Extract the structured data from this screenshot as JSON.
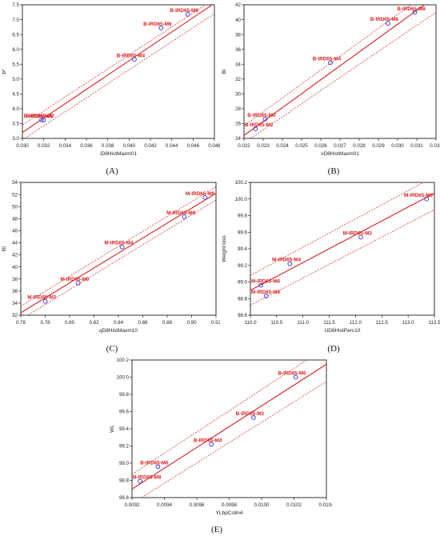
{
  "colors": {
    "accent": "#d81e1e",
    "point": "#2b2bd6",
    "frame": "#000000"
  },
  "chart_data": [
    {
      "type": "scatter",
      "panel_label": "(A)",
      "xlabel": "iD8HistMaxm01",
      "ylabel": "b*",
      "xlim": [
        0.03,
        0.048
      ],
      "ylim": [
        3.0,
        7.5
      ],
      "xticks": [
        "0.030",
        "0.032",
        "0.034",
        "0.036",
        "0.038",
        "0.040",
        "0.042",
        "0.044",
        "0.046",
        "0.048"
      ],
      "yticks": [
        "3.0",
        "3.5",
        "4.0",
        "4.5",
        "5.0",
        "5.5",
        "6.0",
        "6.5",
        "7.0",
        "7.5"
      ],
      "points": [
        {
          "label": "B-IRD65-M0",
          "x": 0.0318,
          "y": 3.62
        },
        {
          "label": "B-IRD65-M2",
          "x": 0.032,
          "y": 3.62
        },
        {
          "label": "B-IRD65-M4",
          "x": 0.0405,
          "y": 5.66
        },
        {
          "label": "B-IRD65-M6",
          "x": 0.043,
          "y": 6.72
        },
        {
          "label": "B-IRD65-M8",
          "x": 0.0455,
          "y": 7.18
        }
      ],
      "fit": [
        [
          0.03,
          3.2
        ],
        [
          0.048,
          7.55
        ]
      ],
      "ci_upper": [
        [
          0.03,
          3.45
        ],
        [
          0.048,
          7.7
        ]
      ],
      "ci_lower": [
        [
          0.03,
          2.95
        ],
        [
          0.048,
          7.2
        ]
      ]
    },
    {
      "type": "scatter",
      "panel_label": "(B)",
      "xlabel": "vD8HistMaxm01",
      "ylabel": "BI",
      "xlim": [
        0.022,
        0.032
      ],
      "ylim": [
        24,
        42
      ],
      "xticks": [
        "0.022",
        "0.023",
        "0.024",
        "0.025",
        "0.026",
        "0.027",
        "0.028",
        "0.029",
        "0.030",
        "0.031",
        "0.032"
      ],
      "yticks": [
        "24",
        "26",
        "28",
        "30",
        "32",
        "34",
        "36",
        "38",
        "40",
        "42"
      ],
      "points": [
        {
          "label": "B-IRD65-M0",
          "x": 0.0231,
          "y": 26.6
        },
        {
          "label": "B-IRD65-M2",
          "x": 0.0226,
          "y": 25.3
        },
        {
          "label": "B-IRD65-M4",
          "x": 0.0265,
          "y": 34.2
        },
        {
          "label": "B-IRD65-M6",
          "x": 0.0295,
          "y": 39.5
        },
        {
          "label": "B-IRD65-M8",
          "x": 0.0309,
          "y": 41.0
        }
      ],
      "fit": [
        [
          0.022,
          24.4
        ],
        [
          0.0315,
          42.2
        ]
      ],
      "ci_upper": [
        [
          0.022,
          25.7
        ],
        [
          0.0308,
          42.2
        ]
      ],
      "ci_lower": [
        [
          0.022,
          23.4
        ],
        [
          0.032,
          41.0
        ]
      ]
    },
    {
      "type": "scatter",
      "panel_label": "(C)",
      "xlabel": "qD8HistMaxm10",
      "ylabel": "BI",
      "xlim": [
        0.76,
        0.92
      ],
      "ylim": [
        32,
        54
      ],
      "xticks": [
        "0.76",
        "0.78",
        "0.80",
        "0.82",
        "0.84",
        "0.86",
        "0.88",
        "0.90",
        "0.92"
      ],
      "yticks": [
        "32",
        "34",
        "36",
        "38",
        "40",
        "42",
        "44",
        "46",
        "48",
        "50",
        "52",
        "54"
      ],
      "points": [
        {
          "label": "M-IRD65-M0",
          "x": 0.807,
          "y": 37.3
        },
        {
          "label": "M-IRD65-M2",
          "x": 0.78,
          "y": 34.3
        },
        {
          "label": "M-IRD65-M4",
          "x": 0.843,
          "y": 43.3
        },
        {
          "label": "M-IRD65-M6",
          "x": 0.894,
          "y": 48.3
        },
        {
          "label": "M-IRD65-M8",
          "x": 0.911,
          "y": 51.5
        }
      ],
      "fit": [
        [
          0.76,
          32.4
        ],
        [
          0.92,
          52.2
        ]
      ],
      "ci_upper": [
        [
          0.76,
          33.5
        ],
        [
          0.92,
          53.3
        ]
      ],
      "ci_lower": [
        [
          0.76,
          31.3
        ],
        [
          0.92,
          51.1
        ]
      ]
    },
    {
      "type": "scatter",
      "panel_label": "(D)",
      "xlabel": "UD8HistPerc10",
      "ylabel": "Weight loss",
      "xlim": [
        110.0,
        113.5
      ],
      "ylim": [
        98.6,
        100.2
      ],
      "xticks": [
        "110.0",
        "110.5",
        "111.0",
        "111.5",
        "112.0",
        "112.5",
        "113.0",
        "113.5"
      ],
      "yticks": [
        "98.6",
        "98.8",
        "99.0",
        "99.2",
        "99.4",
        "99.6",
        "99.8",
        "100.0",
        "100.2"
      ],
      "points": [
        {
          "label": "M-IRD65-M0",
          "x": 113.35,
          "y": 100.0
        },
        {
          "label": "M-IRD65-M2",
          "x": 112.1,
          "y": 99.54
        },
        {
          "label": "M-IRD65-M4",
          "x": 110.75,
          "y": 99.22
        },
        {
          "label": "M-IRD65-M6",
          "x": 110.2,
          "y": 98.96
        },
        {
          "label": "M-IRD65-M8",
          "x": 110.3,
          "y": 98.83
        }
      ],
      "fit": [
        [
          110.0,
          98.9
        ],
        [
          113.5,
          100.07
        ]
      ],
      "ci_upper": [
        [
          110.0,
          99.08
        ],
        [
          113.5,
          100.27
        ]
      ],
      "ci_lower": [
        [
          110.0,
          98.72
        ],
        [
          113.5,
          99.87
        ]
      ]
    },
    {
      "type": "scatter",
      "panel_label": "(E)",
      "xlabel": "YLbpCs8n4",
      "ylabel": "WL",
      "xlim": [
        0.0092,
        0.0104
      ],
      "ylim": [
        98.6,
        100.2
      ],
      "xticks": [
        "0.0092",
        "0.0094",
        "0.0096",
        "0.0098",
        "0.0100",
        "0.0102",
        "0.0104"
      ],
      "yticks": [
        "98.6",
        "98.8",
        "99.0",
        "99.2",
        "99.4",
        "99.6",
        "99.8",
        "100.0",
        "100.2"
      ],
      "points": [
        {
          "label": "B-IRD65-M0",
          "x": 0.01021,
          "y": 100.0
        },
        {
          "label": "B-IRD65-M2",
          "x": 0.00995,
          "y": 99.53
        },
        {
          "label": "B-IRD65-M4",
          "x": 0.00969,
          "y": 99.22
        },
        {
          "label": "B-IRD65-M6",
          "x": 0.00936,
          "y": 98.96
        },
        {
          "label": "B-IRD65-M8",
          "x": 0.00925,
          "y": 98.79
        }
      ],
      "fit": [
        [
          0.0092,
          98.7
        ],
        [
          0.0104,
          100.15
        ]
      ],
      "ci_upper": [
        [
          0.0092,
          98.87
        ],
        [
          0.0104,
          100.35
        ]
      ],
      "ci_lower": [
        [
          0.0092,
          98.53
        ],
        [
          0.0104,
          99.95
        ]
      ]
    }
  ]
}
